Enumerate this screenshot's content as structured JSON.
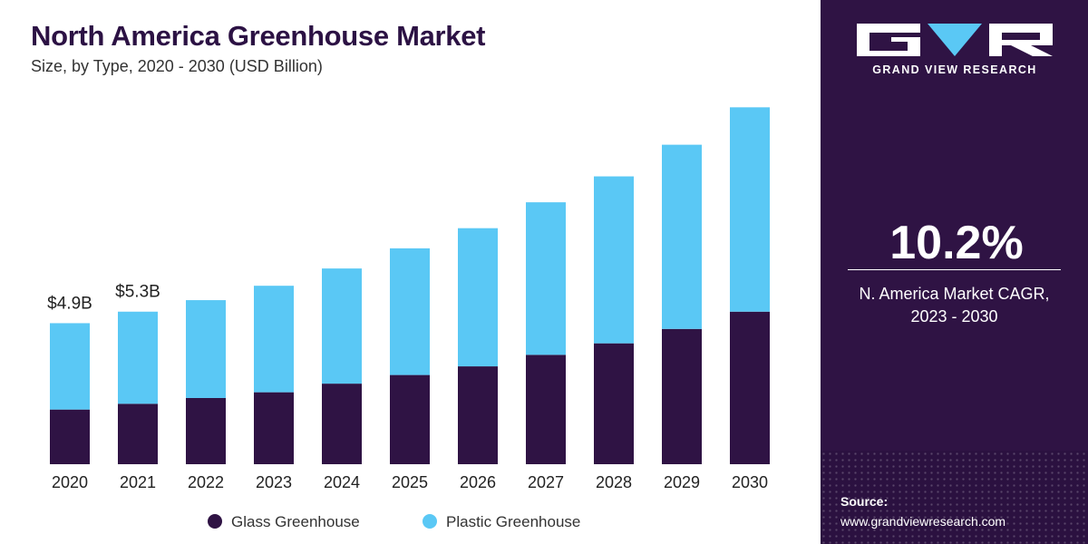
{
  "chart_data": {
    "type": "bar",
    "stacked": true,
    "title": "North America Greenhouse Market",
    "subtitle": "Size, by Type, 2020 - 2030 (USD Billion)",
    "categories": [
      "2020",
      "2021",
      "2022",
      "2023",
      "2024",
      "2025",
      "2026",
      "2027",
      "2028",
      "2029",
      "2030"
    ],
    "series": [
      {
        "name": "Glass Greenhouse",
        "color": "#2f1344",
        "values": [
          1.9,
          2.1,
          2.3,
          2.5,
          2.8,
          3.1,
          3.4,
          3.8,
          4.2,
          4.7,
          5.3
        ]
      },
      {
        "name": "Plastic Greenhouse",
        "color": "#5ac8f5",
        "values": [
          3.0,
          3.2,
          3.4,
          3.7,
          4.0,
          4.4,
          4.8,
          5.3,
          5.8,
          6.4,
          7.1
        ]
      }
    ],
    "data_labels": [
      {
        "category": "2020",
        "text": "$4.9B"
      },
      {
        "category": "2021",
        "text": "$5.3B"
      }
    ],
    "ylim": [
      0,
      12.6
    ],
    "grid": false,
    "legend_position": "bottom"
  },
  "sidebar": {
    "brand": "GRAND VIEW RESEARCH",
    "cagr_value": "10.2%",
    "cagr_label_line1": "N. America Market CAGR,",
    "cagr_label_line2": "2023 - 2030",
    "source_label": "Source:",
    "source_url": "www.grandviewresearch.com"
  }
}
